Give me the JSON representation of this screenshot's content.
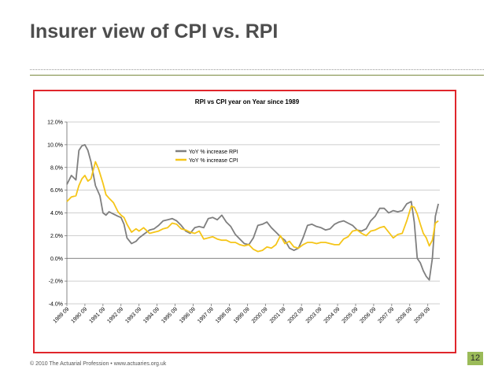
{
  "slide": {
    "title": "Insurer view of CPI vs. RPI",
    "footer": "© 2010 The Actuarial Profession • www.actuaries.org.uk",
    "page_number": "12"
  },
  "colors": {
    "rpi": "#7f7f7f",
    "cpi": "#f5c518",
    "frame": "#e0262c",
    "accent": "#9bbb59"
  },
  "chart_data": {
    "type": "line",
    "title": "RPI vs CPI year on Year since 1989",
    "xlabel": "",
    "ylabel": "",
    "ylim": [
      -4,
      12
    ],
    "yticks": [
      -4,
      -2,
      0,
      2,
      4,
      6,
      8,
      10,
      12
    ],
    "ytick_labels": [
      "-4.0%",
      "-2.0%",
      "0.0%",
      "2.0%",
      "4.0%",
      "6.0%",
      "8.0%",
      "10.0%",
      "12.0%"
    ],
    "x_range": [
      1989.667,
      2010.333
    ],
    "x_ticks": [
      1989.667,
      1990.667,
      1991.667,
      1992.667,
      1993.667,
      1994.667,
      1995.667,
      1996.667,
      1997.667,
      1998.667,
      1999.667,
      2000.667,
      2001.667,
      2002.667,
      2003.667,
      2004.667,
      2005.667,
      2006.667,
      2007.667,
      2008.667,
      2009.667
    ],
    "x_tick_labels": [
      "1989 09",
      "1990 09",
      "1991 09",
      "1992 09",
      "1993 09",
      "1994 09",
      "1995 09",
      "1996 09",
      "1997 09",
      "1998 09",
      "1999 09",
      "2000 09",
      "2001 09",
      "2002 09",
      "2003 09",
      "2004 09",
      "2005 09",
      "2006 09",
      "2007 09",
      "2008 09",
      "2009 09"
    ],
    "grid": "horizontal",
    "legend": "top-center",
    "series": [
      {
        "name": "YoY % increase RPI",
        "x": [
          1989.667,
          1989.917,
          1990.167,
          1990.333,
          1990.5,
          1990.667,
          1990.833,
          1991.0,
          1991.25,
          1991.5,
          1991.667,
          1991.833,
          1992.0,
          1992.25,
          1992.5,
          1992.667,
          1992.833,
          1993.0,
          1993.25,
          1993.5,
          1993.667,
          1993.917,
          1994.25,
          1994.5,
          1994.75,
          1995.0,
          1995.25,
          1995.5,
          1995.75,
          1996.0,
          1996.25,
          1996.5,
          1996.75,
          1997.0,
          1997.25,
          1997.5,
          1997.75,
          1998.0,
          1998.25,
          1998.5,
          1998.75,
          1999.0,
          1999.25,
          1999.5,
          1999.75,
          2000.0,
          2000.25,
          2000.5,
          2000.75,
          2001.0,
          2001.25,
          2001.5,
          2001.75,
          2002.0,
          2002.25,
          2002.5,
          2002.75,
          2003.0,
          2003.25,
          2003.5,
          2003.75,
          2004.0,
          2004.25,
          2004.5,
          2004.75,
          2005.0,
          2005.25,
          2005.5,
          2005.75,
          2006.0,
          2006.25,
          2006.5,
          2006.75,
          2007.0,
          2007.25,
          2007.5,
          2007.75,
          2008.0,
          2008.25,
          2008.5,
          2008.75,
          2008.917,
          2009.083,
          2009.25,
          2009.417,
          2009.583,
          2009.75,
          2009.917,
          2010.083,
          2010.25
        ],
        "y": [
          6.5,
          7.3,
          6.9,
          9.5,
          9.9,
          10.0,
          9.5,
          8.5,
          6.4,
          5.5,
          4.0,
          3.8,
          4.1,
          3.9,
          3.7,
          3.6,
          3.0,
          1.8,
          1.3,
          1.5,
          1.8,
          2.1,
          2.5,
          2.6,
          2.9,
          3.3,
          3.4,
          3.5,
          3.3,
          2.9,
          2.4,
          2.2,
          2.7,
          2.8,
          2.7,
          3.5,
          3.6,
          3.4,
          3.8,
          3.2,
          2.8,
          2.1,
          1.7,
          1.3,
          1.2,
          1.8,
          2.9,
          3.0,
          3.2,
          2.7,
          2.3,
          1.9,
          1.6,
          0.9,
          0.7,
          0.9,
          1.8,
          2.9,
          3.0,
          2.8,
          2.7,
          2.5,
          2.6,
          3.0,
          3.2,
          3.3,
          3.1,
          2.9,
          2.5,
          2.4,
          2.6,
          3.3,
          3.7,
          4.4,
          4.4,
          4.0,
          4.2,
          4.1,
          4.2,
          4.8,
          5.0,
          3.2,
          0.0,
          -0.4,
          -1.1,
          -1.6,
          -1.9,
          0.0,
          3.7,
          4.8
        ]
      },
      {
        "name": "YoY % increase CPI",
        "x": [
          1989.667,
          1989.917,
          1990.167,
          1990.333,
          1990.5,
          1990.667,
          1990.833,
          1991.0,
          1991.25,
          1991.417,
          1991.667,
          1991.833,
          1992.0,
          1992.25,
          1992.5,
          1992.667,
          1992.833,
          1993.0,
          1993.25,
          1993.5,
          1993.667,
          1993.917,
          1994.25,
          1994.5,
          1994.75,
          1995.0,
          1995.25,
          1995.5,
          1995.75,
          1996.0,
          1996.25,
          1996.5,
          1996.75,
          1997.0,
          1997.25,
          1997.5,
          1997.75,
          1998.0,
          1998.25,
          1998.5,
          1998.75,
          1999.0,
          1999.25,
          1999.5,
          1999.75,
          2000.0,
          2000.25,
          2000.5,
          2000.75,
          2001.0,
          2001.25,
          2001.5,
          2001.75,
          2002.0,
          2002.25,
          2002.5,
          2002.75,
          2003.0,
          2003.25,
          2003.5,
          2003.75,
          2004.0,
          2004.25,
          2004.5,
          2004.75,
          2005.0,
          2005.25,
          2005.5,
          2005.75,
          2006.0,
          2006.25,
          2006.5,
          2006.75,
          2007.0,
          2007.25,
          2007.5,
          2007.75,
          2008.0,
          2008.25,
          2008.5,
          2008.75,
          2008.917,
          2009.083,
          2009.25,
          2009.417,
          2009.583,
          2009.75,
          2009.917,
          2010.083,
          2010.25
        ],
        "y": [
          5.0,
          5.4,
          5.5,
          6.4,
          7.0,
          7.3,
          6.8,
          7.0,
          8.5,
          7.9,
          6.6,
          5.6,
          5.3,
          4.9,
          4.1,
          3.8,
          3.6,
          3.0,
          2.3,
          2.6,
          2.4,
          2.7,
          2.2,
          2.3,
          2.4,
          2.6,
          2.7,
          3.1,
          3.0,
          2.6,
          2.5,
          2.3,
          2.2,
          2.4,
          1.7,
          1.8,
          1.9,
          1.7,
          1.6,
          1.6,
          1.4,
          1.4,
          1.2,
          1.1,
          1.2,
          0.8,
          0.6,
          0.7,
          1.0,
          0.9,
          1.2,
          2.0,
          1.3,
          1.5,
          1.0,
          0.9,
          1.2,
          1.4,
          1.4,
          1.3,
          1.4,
          1.4,
          1.3,
          1.2,
          1.2,
          1.7,
          1.9,
          2.4,
          2.5,
          2.2,
          2.0,
          2.4,
          2.5,
          2.7,
          2.8,
          2.3,
          1.8,
          2.1,
          2.2,
          3.3,
          4.6,
          4.5,
          3.9,
          3.0,
          2.2,
          1.8,
          1.1,
          1.6,
          3.1,
          3.3
        ]
      }
    ]
  }
}
